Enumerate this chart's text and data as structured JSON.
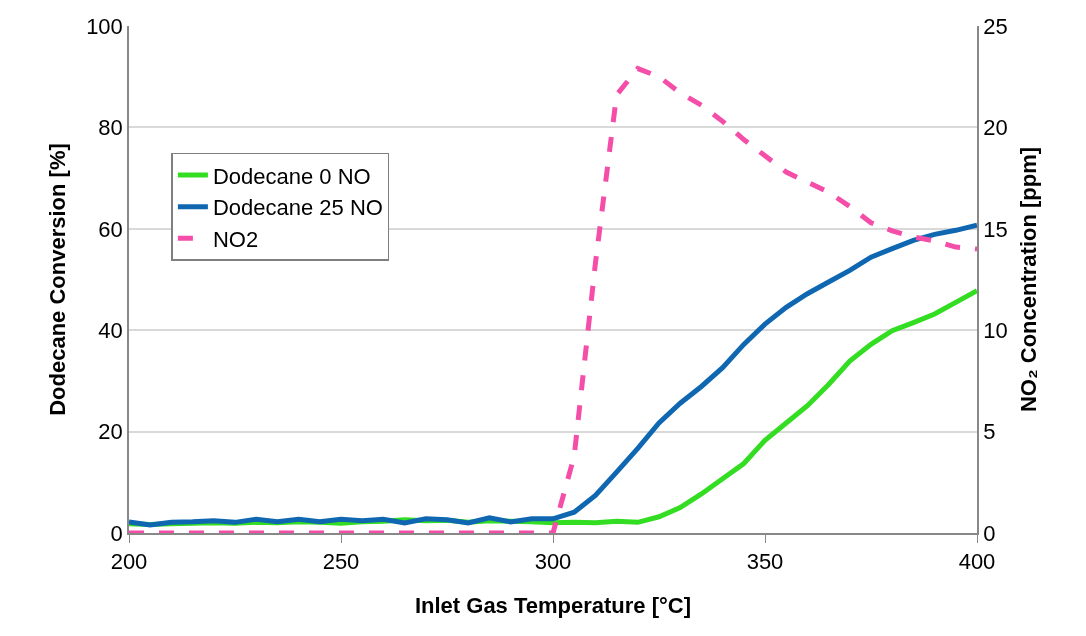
{
  "chart_data": {
    "type": "line",
    "xlabel": "Inlet Gas Temperature [°C]",
    "ylabel": "Dodecane Conversion [%]",
    "y2label": "NO₂ Concentration [ppm]",
    "x": [
      200,
      205,
      210,
      215,
      220,
      225,
      230,
      235,
      240,
      245,
      250,
      255,
      260,
      265,
      270,
      275,
      280,
      285,
      290,
      295,
      300,
      305,
      310,
      315,
      320,
      325,
      330,
      335,
      340,
      345,
      350,
      355,
      360,
      365,
      370,
      375,
      380,
      385,
      390,
      395,
      400
    ],
    "series": [
      {
        "name": "Dodecane 0 NO",
        "color": "#33dd22",
        "line_style": "solid",
        "values": [
          1.8,
          1.7,
          1.8,
          1.9,
          2.0,
          1.9,
          2.1,
          2.0,
          2.2,
          2.1,
          1.9,
          2.2,
          2.3,
          2.6,
          2.4,
          2.5,
          2.1,
          2.4,
          2.3,
          2.2,
          2.0,
          2.1,
          2.0,
          2.3,
          2.1,
          3.2,
          5.0,
          7.7,
          10.7,
          13.7,
          18.3,
          21.7,
          25.1,
          29.3,
          33.9,
          37.2,
          39.9,
          41.5,
          43.2,
          45.5,
          47.8
        ]
      },
      {
        "name": "Dodecane 25 NO",
        "color": "#0f67b1",
        "line_style": "solid",
        "values": [
          2.2,
          1.6,
          2.1,
          2.2,
          2.4,
          2.1,
          2.7,
          2.2,
          2.7,
          2.2,
          2.7,
          2.4,
          2.7,
          2.0,
          2.8,
          2.6,
          2.0,
          3.0,
          2.2,
          2.8,
          2.8,
          4.1,
          7.4,
          12.0,
          16.7,
          21.7,
          25.6,
          28.9,
          32.6,
          37.2,
          41.2,
          44.5,
          47.2,
          49.5,
          51.8,
          54.4,
          56.1,
          57.7,
          58.9,
          59.7,
          60.7
        ]
      },
      {
        "name": "NO2",
        "color": "#f54ea8",
        "line_style": "dashed",
        "axis": "y2",
        "values": [
          0,
          0,
          0,
          0,
          0,
          0,
          0,
          0,
          0,
          0,
          0,
          0,
          0,
          0,
          0,
          0,
          0,
          0,
          0,
          0,
          0,
          3.8,
          13.3,
          21.6,
          22.9,
          22.5,
          21.7,
          21.1,
          20.3,
          19.4,
          18.6,
          17.8,
          17.3,
          16.8,
          16.1,
          15.3,
          14.9,
          14.6,
          14.4,
          14.1,
          14.0
        ]
      }
    ],
    "xlim": [
      200,
      400
    ],
    "xticks": [
      200,
      250,
      300,
      350,
      400
    ],
    "ylim": [
      0,
      100
    ],
    "yticks": [
      0,
      20,
      40,
      60,
      80,
      100
    ],
    "y2lim": [
      0,
      25
    ],
    "y2ticks": [
      0,
      5,
      10,
      15,
      20,
      25
    ],
    "grid": "y",
    "legend": "top left",
    "marker": "none"
  }
}
